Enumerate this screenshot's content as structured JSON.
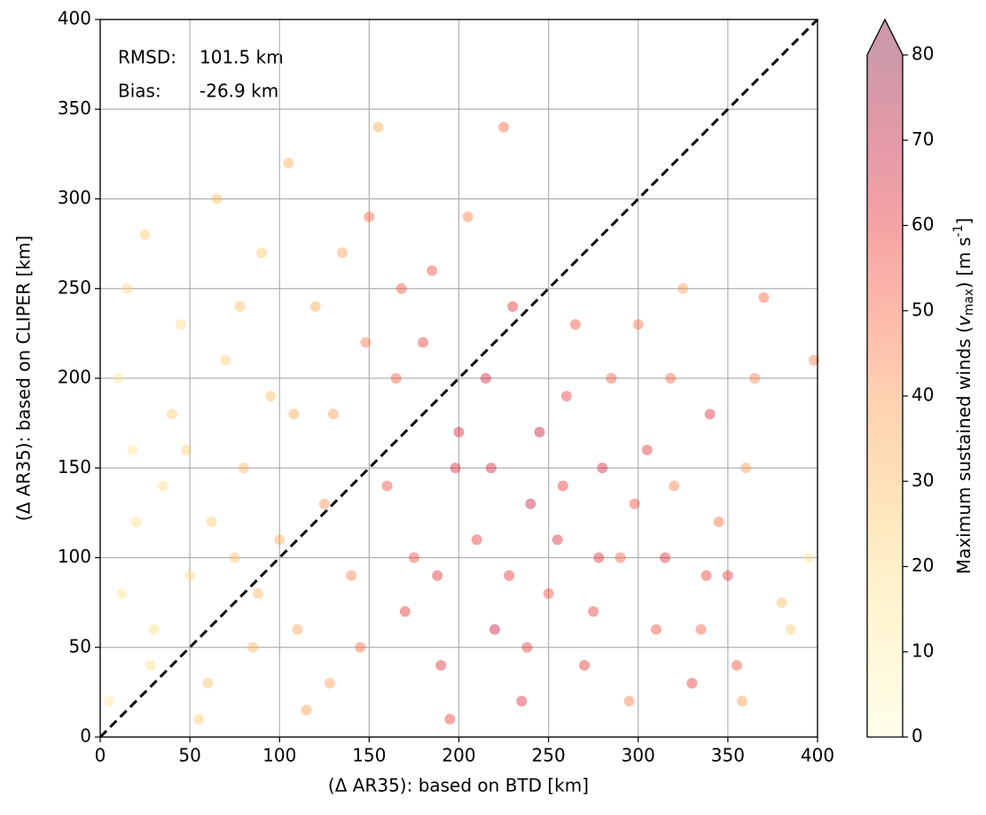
{
  "chart_data": {
    "type": "scatter",
    "xlabel": "(Δ AR35): based on BTD [km]",
    "ylabel": "(Δ AR35): based on CLIPER [km]",
    "annotations": [
      {
        "label": "RMSD:",
        "text": "101.5 km"
      },
      {
        "label": "Bias:",
        "text": "-26.9 km"
      }
    ],
    "xlim": [
      0,
      400
    ],
    "ylim": [
      0,
      400
    ],
    "xticks": [
      0,
      50,
      100,
      150,
      200,
      250,
      300,
      350,
      400
    ],
    "yticks": [
      0,
      50,
      100,
      150,
      200,
      250,
      300,
      350,
      400
    ],
    "grid": true,
    "reference_line": true,
    "colormap": [
      "#ffffcc",
      "#ffeda0",
      "#fed976",
      "#feb24c",
      "#fd8d3c",
      "#fc4e2a",
      "#e31a1c",
      "#bd0026",
      "#800026"
    ],
    "marker_opacity": 0.4,
    "colorbar": {
      "label_parts": [
        "Maximum sustained winds (",
        "v",
        "max",
        ") [m s",
        "-1",
        "]"
      ],
      "clim": [
        0,
        80
      ],
      "ticks": [
        0,
        10,
        20,
        30,
        40,
        50,
        60,
        70,
        80
      ],
      "extend": "max"
    },
    "series": [
      {
        "x": [
          10,
          20,
          30,
          15,
          40,
          50,
          60,
          70,
          80,
          90,
          100,
          110,
          120,
          130,
          140,
          150,
          160,
          170,
          180,
          190,
          200,
          210,
          220,
          230,
          240,
          250,
          260,
          270,
          280,
          290,
          300,
          310,
          320,
          330,
          340,
          350,
          360,
          370,
          395,
          398,
          5,
          25,
          35,
          45,
          55,
          65,
          75,
          85,
          95,
          105,
          115,
          125,
          135,
          145,
          155,
          165,
          175,
          185,
          195,
          205,
          215,
          225,
          235,
          245,
          255,
          265,
          275,
          285,
          295,
          305,
          315,
          325,
          335,
          345,
          355,
          365,
          385,
          12,
          28,
          48,
          62,
          78,
          88,
          108,
          128,
          148,
          168,
          188,
          198,
          218,
          228,
          238,
          258,
          278,
          298,
          318,
          338,
          358,
          380,
          18
        ],
        "values": [
          200,
          120,
          60,
          250,
          180,
          90,
          30,
          210,
          150,
          270,
          110,
          60,
          240,
          180,
          90,
          290,
          140,
          70,
          220,
          40,
          170,
          110,
          60,
          240,
          130,
          80,
          190,
          40,
          150,
          100,
          230,
          60,
          140,
          30,
          180,
          90,
          150,
          245,
          100,
          210,
          20,
          280,
          140,
          230,
          10,
          300,
          100,
          50,
          190,
          320,
          15,
          130,
          270,
          50,
          340,
          200,
          100,
          260,
          10,
          290,
          200,
          340,
          20,
          170,
          110,
          230,
          70,
          200,
          20,
          160,
          100,
          250,
          60,
          120,
          40,
          200,
          60,
          80,
          40,
          160,
          120,
          240,
          80,
          180,
          30,
          220,
          250,
          90,
          150,
          150,
          90,
          50,
          140,
          100,
          130,
          200,
          90,
          20,
          75,
          160
        ],
        "c": [
          15,
          18,
          20,
          22,
          25,
          22,
          28,
          25,
          30,
          28,
          35,
          38,
          35,
          40,
          45,
          50,
          55,
          60,
          58,
          62,
          65,
          60,
          70,
          62,
          68,
          55,
          58,
          60,
          65,
          50,
          48,
          55,
          45,
          60,
          62,
          58,
          40,
          50,
          15,
          45,
          15,
          25,
          20,
          22,
          25,
          30,
          28,
          32,
          30,
          35,
          40,
          42,
          38,
          48,
          35,
          52,
          55,
          55,
          58,
          45,
          66,
          50,
          62,
          70,
          62,
          55,
          58,
          52,
          45,
          60,
          62,
          40,
          52,
          48,
          55,
          45,
          25,
          18,
          20,
          24,
          26,
          30,
          32,
          36,
          40,
          46,
          54,
          62,
          64,
          66,
          60,
          58,
          60,
          62,
          55,
          50,
          58,
          40,
          30,
          16
        ]
      }
    ]
  }
}
